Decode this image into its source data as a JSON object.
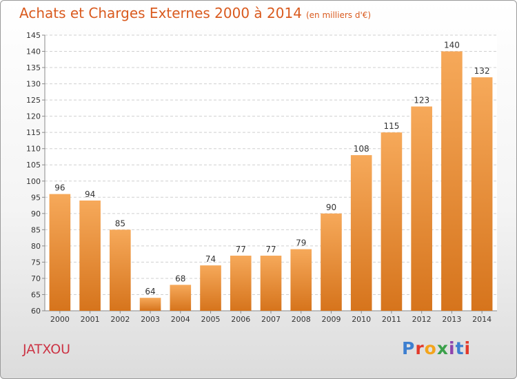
{
  "header": {
    "title": "Achats et Charges Externes 2000 à 2014",
    "unit": "(en milliers d'€)"
  },
  "footer": {
    "commune": "JATXOU",
    "brand": "Proxiti"
  },
  "colors": {
    "title": "#d95a1e",
    "commune": "#cc3344",
    "bar_light": "#f6a95a",
    "bar_dark": "#d6741c",
    "brand_letters": [
      "#3d7fd0",
      "#e2392b",
      "#f3a41c",
      "#3aa04a",
      "#8e44ad",
      "#3d7fd0",
      "#e2392b"
    ]
  },
  "chart_data": {
    "type": "bar",
    "categories": [
      "2000",
      "2001",
      "2002",
      "2003",
      "2004",
      "2005",
      "2006",
      "2007",
      "2008",
      "2009",
      "2010",
      "2011",
      "2012",
      "2013",
      "2014"
    ],
    "values": [
      96,
      94,
      85,
      64,
      68,
      74,
      77,
      77,
      79,
      90,
      108,
      115,
      123,
      140,
      132
    ],
    "ylim": [
      60,
      145
    ],
    "yticks": [
      60,
      65,
      70,
      75,
      80,
      85,
      90,
      95,
      100,
      105,
      110,
      115,
      120,
      125,
      130,
      135,
      140,
      145
    ],
    "grid": true,
    "data_labels": true
  }
}
